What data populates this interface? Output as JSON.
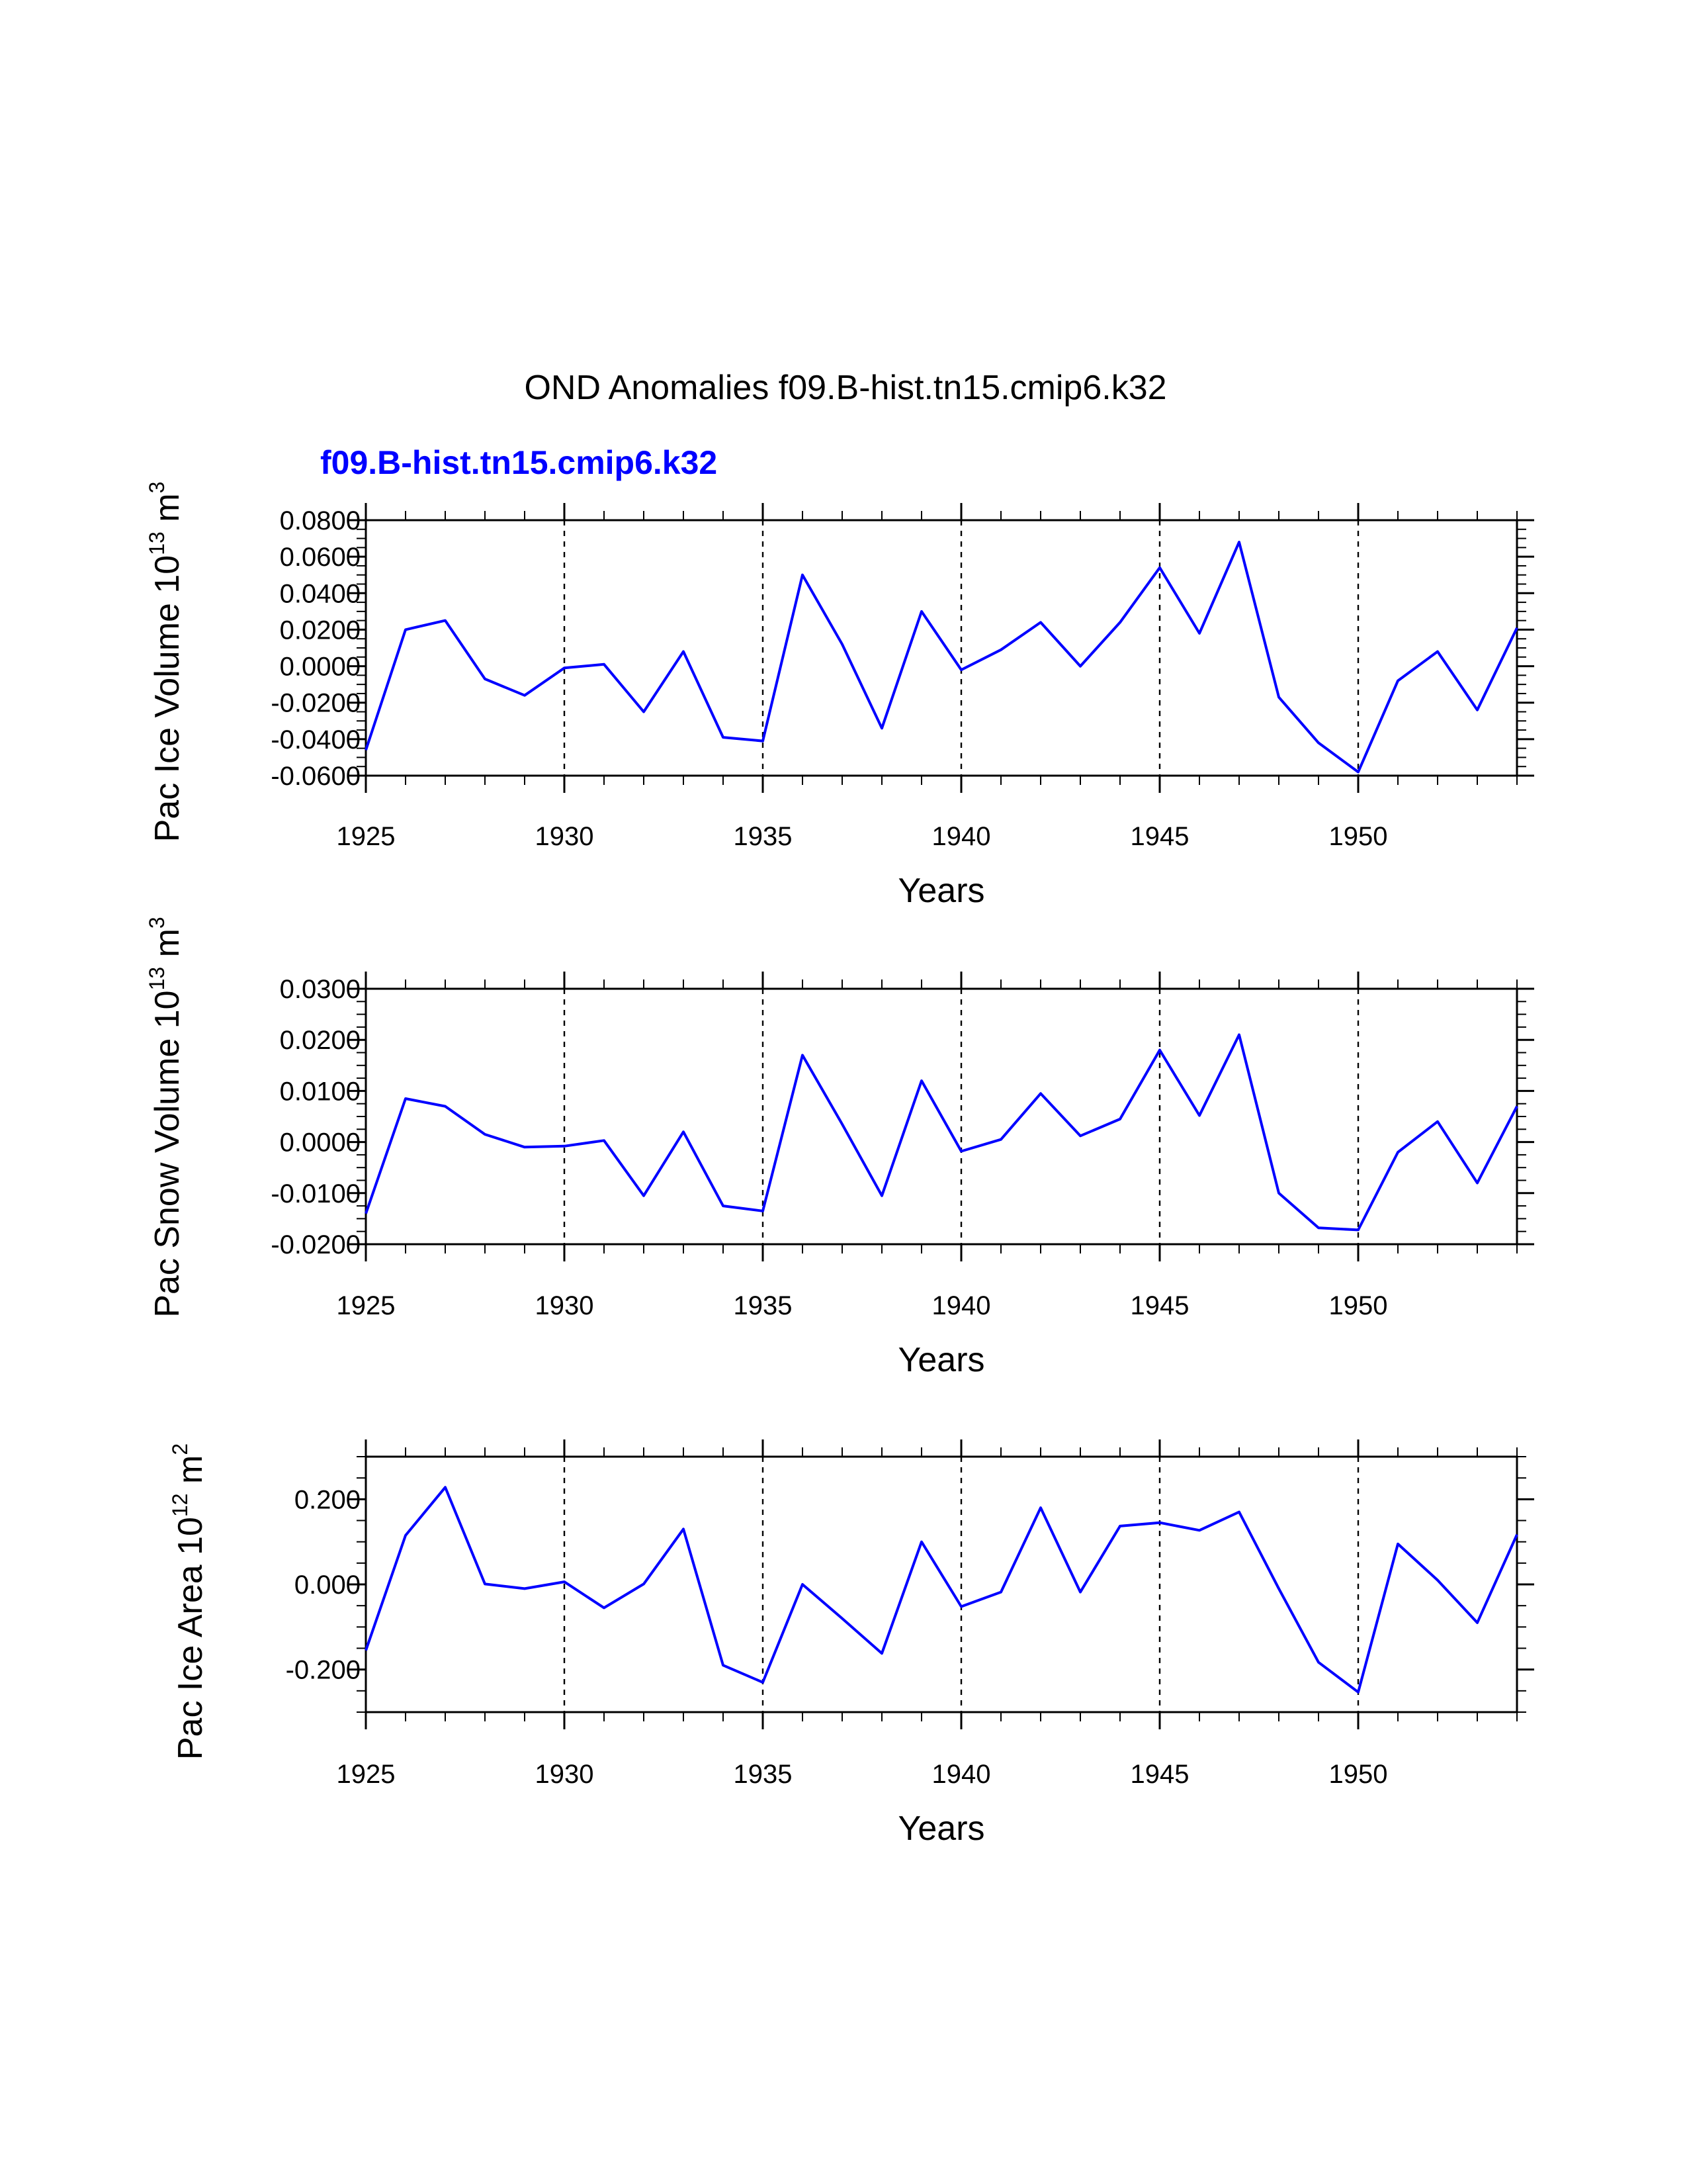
{
  "figure": {
    "title": "OND Anomalies f09.B-hist.tn15.cmip6.k32",
    "subtitle": "f09.B-hist.tn15.cmip6.k32",
    "series_color": "#0000ff"
  },
  "chart_data": [
    {
      "type": "line",
      "id": "ice-volume",
      "title": "",
      "xlabel": "Years",
      "ylabel_parts": [
        "Pac Ice Volume 10",
        "13",
        " m",
        "3"
      ],
      "x": [
        1925,
        1926,
        1927,
        1928,
        1929,
        1930,
        1931,
        1932,
        1933,
        1934,
        1935,
        1936,
        1937,
        1938,
        1939,
        1940,
        1941,
        1942,
        1943,
        1944,
        1945,
        1946,
        1947,
        1948,
        1949,
        1950,
        1951,
        1952,
        1953,
        1954
      ],
      "series": [
        {
          "name": "f09.B-hist.tn15.cmip6.k32",
          "values": [
            -0.046,
            0.02,
            0.025,
            -0.007,
            -0.016,
            -0.001,
            0.001,
            -0.025,
            0.008,
            -0.039,
            -0.041,
            0.05,
            0.012,
            -0.034,
            0.03,
            -0.002,
            0.009,
            0.024,
            0.0,
            0.024,
            0.054,
            0.018,
            0.068,
            -0.017,
            -0.042,
            -0.058,
            -0.008,
            0.008,
            -0.024,
            0.021
          ]
        }
      ],
      "xlim": [
        1925,
        1954
      ],
      "ylim": [
        -0.06,
        0.08
      ],
      "yticks": [
        -0.06,
        -0.04,
        -0.02,
        0.0,
        0.02,
        0.04,
        0.06,
        0.08
      ],
      "ytick_labels": [
        "-0.0600",
        "-0.0400",
        "-0.0200",
        "0.0000",
        "0.0200",
        "0.0400",
        "0.0600",
        "0.0800"
      ],
      "xticks": [
        1925,
        1930,
        1935,
        1940,
        1945,
        1950
      ],
      "xtick_labels": [
        "1925",
        "1930",
        "1935",
        "1940",
        "1945",
        "1950"
      ],
      "grid_x": [
        1930,
        1935,
        1940,
        1945,
        1950
      ]
    },
    {
      "type": "line",
      "id": "snow-volume",
      "title": "",
      "xlabel": "Years",
      "ylabel_parts": [
        "Pac Snow Volume 10",
        "13",
        " m",
        "3"
      ],
      "x": [
        1925,
        1926,
        1927,
        1928,
        1929,
        1930,
        1931,
        1932,
        1933,
        1934,
        1935,
        1936,
        1937,
        1938,
        1939,
        1940,
        1941,
        1942,
        1943,
        1944,
        1945,
        1946,
        1947,
        1948,
        1949,
        1950,
        1951,
        1952,
        1953,
        1954
      ],
      "series": [
        {
          "name": "f09.B-hist.tn15.cmip6.k32",
          "values": [
            -0.014,
            0.0085,
            0.007,
            0.0015,
            -0.001,
            -0.0008,
            0.0003,
            -0.0105,
            0.002,
            -0.0125,
            -0.0135,
            0.017,
            0.0035,
            -0.0105,
            0.012,
            -0.0018,
            0.0005,
            0.0095,
            0.0012,
            0.0045,
            0.018,
            0.0052,
            0.021,
            -0.01,
            -0.0168,
            -0.0172,
            -0.002,
            0.004,
            -0.008,
            0.007
          ]
        }
      ],
      "xlim": [
        1925,
        1954
      ],
      "ylim": [
        -0.02,
        0.03
      ],
      "yticks": [
        -0.02,
        -0.01,
        0.0,
        0.01,
        0.02,
        0.03
      ],
      "ytick_labels": [
        "-0.0200",
        "-0.0100",
        "0.0000",
        "0.0100",
        "0.0200",
        "0.0300"
      ],
      "xticks": [
        1925,
        1930,
        1935,
        1940,
        1945,
        1950
      ],
      "xtick_labels": [
        "1925",
        "1930",
        "1935",
        "1940",
        "1945",
        "1950"
      ],
      "grid_x": [
        1930,
        1935,
        1940,
        1945,
        1950
      ]
    },
    {
      "type": "line",
      "id": "ice-area",
      "title": "",
      "xlabel": "Years",
      "ylabel_parts": [
        "Pac Ice Area 10",
        "12",
        " m",
        "2"
      ],
      "x": [
        1925,
        1926,
        1927,
        1928,
        1929,
        1930,
        1931,
        1932,
        1933,
        1934,
        1935,
        1936,
        1937,
        1938,
        1939,
        1940,
        1941,
        1942,
        1943,
        1944,
        1945,
        1946,
        1947,
        1948,
        1949,
        1950,
        1951,
        1952,
        1953,
        1954
      ],
      "series": [
        {
          "name": "f09.B-hist.tn15.cmip6.k32",
          "values": [
            -0.155,
            0.115,
            0.228,
            0.001,
            -0.01,
            0.006,
            -0.055,
            0.001,
            0.13,
            -0.19,
            -0.23,
            0.0,
            -0.08,
            -0.162,
            0.1,
            -0.052,
            -0.018,
            0.18,
            -0.018,
            0.137,
            0.145,
            0.127,
            0.17,
            -0.01,
            -0.183,
            -0.253,
            0.095,
            0.01,
            -0.09,
            0.117
          ]
        }
      ],
      "xlim": [
        1925,
        1954
      ],
      "ylim": [
        -0.3,
        0.3
      ],
      "yticks": [
        -0.2,
        0.0,
        0.2
      ],
      "ytick_labels": [
        "-0.200",
        "0.000",
        "0.200"
      ],
      "xticks": [
        1925,
        1930,
        1935,
        1940,
        1945,
        1950
      ],
      "xtick_labels": [
        "1925",
        "1930",
        "1935",
        "1940",
        "1945",
        "1950"
      ],
      "grid_x": [
        1930,
        1935,
        1940,
        1945,
        1950
      ]
    }
  ]
}
